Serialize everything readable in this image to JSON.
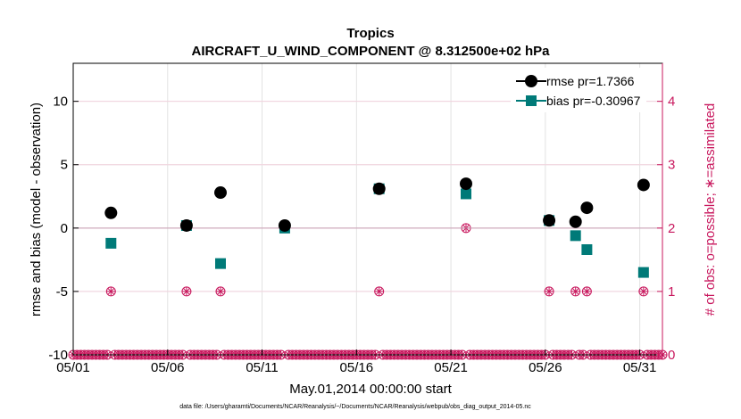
{
  "chart_data": {
    "type": "scatter",
    "title": "Tropics",
    "subtitle": "AIRCRAFT_U_WIND_COMPONENT @ 8.312500e+02 hPa",
    "xlabel": "May.01,2014 00:00:00 start",
    "ylabel": "rmse and bias (model - observation)",
    "ylabel_right": "# of obs: o=possible; ∗=assimilated",
    "x_ticks": [
      "05/01",
      "05/06",
      "05/11",
      "05/16",
      "05/21",
      "05/26",
      "05/31"
    ],
    "x_tick_values": [
      1,
      6,
      11,
      16,
      21,
      26,
      31
    ],
    "xlim": [
      1,
      32.2
    ],
    "ylim": [
      -10,
      13
    ],
    "y_ticks": [
      -10,
      -5,
      0,
      5,
      10
    ],
    "y_right_ticks": [
      0,
      1,
      2,
      3,
      4
    ],
    "y_right_lim": [
      0,
      4.6
    ],
    "grid": true,
    "legend_position": "top-right",
    "series": [
      {
        "name": "rmse pr=1.7366",
        "color": "#000000",
        "marker": "circle",
        "points": [
          [
            3.0,
            1.2
          ],
          [
            7.0,
            0.2
          ],
          [
            8.8,
            2.8
          ],
          [
            12.2,
            0.2
          ],
          [
            17.2,
            3.1
          ],
          [
            21.8,
            3.5
          ],
          [
            26.2,
            0.6
          ],
          [
            27.6,
            0.5
          ],
          [
            28.2,
            1.6
          ],
          [
            31.2,
            3.4
          ]
        ]
      },
      {
        "name": "bias pr=-0.30967",
        "color": "#007a78",
        "marker": "square",
        "points": [
          [
            3.0,
            -1.2
          ],
          [
            7.0,
            0.2
          ],
          [
            8.8,
            -2.8
          ],
          [
            12.2,
            0.0
          ],
          [
            17.2,
            3.1
          ],
          [
            21.8,
            2.7
          ],
          [
            26.2,
            0.6
          ],
          [
            27.6,
            -0.6
          ],
          [
            28.2,
            -1.7
          ],
          [
            31.2,
            -3.5
          ]
        ]
      }
    ],
    "obs_counts": {
      "color": "#c8175d",
      "points": [
        [
          3.0,
          1
        ],
        [
          7.0,
          1
        ],
        [
          8.8,
          1
        ],
        [
          12.2,
          2
        ],
        [
          17.2,
          1
        ],
        [
          21.8,
          2
        ],
        [
          26.2,
          1
        ],
        [
          27.6,
          1
        ],
        [
          28.2,
          1
        ],
        [
          31.2,
          1
        ]
      ]
    },
    "footnote": "data file: /Users/gharamti/Documents/NCAR/Reanalysis/~/Documents/NCAR/Reanalysis/webpub/obs_diag_output_2014-05.nc"
  }
}
